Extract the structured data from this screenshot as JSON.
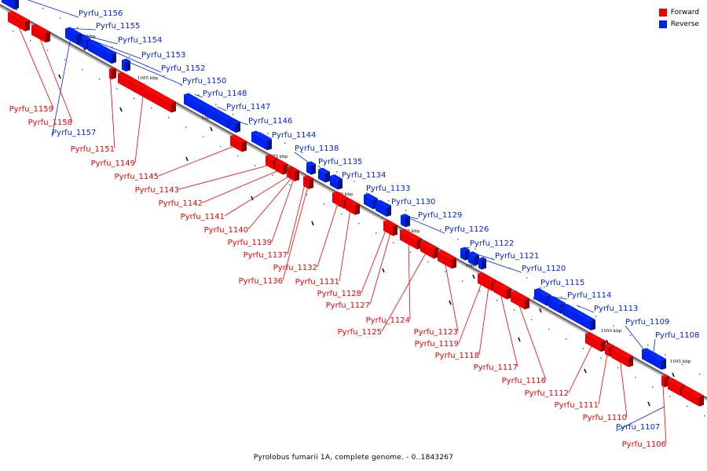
{
  "legend": {
    "forward_label": "Forward",
    "reverse_label": "Reverse",
    "forward_color": "#ee0000",
    "reverse_color": "#0022ee"
  },
  "caption": "Pyrolobus fumarii 1A, complete genome. - 0..1843267",
  "ruler_labels": [
    "1090 kbp",
    "1085 kbp",
    "1080 kbp",
    "1075 kbp",
    "1070 kbp",
    "1065 kbp",
    "1060 kbp",
    "1055 kbp",
    "1050 kbp",
    "1045 kbp"
  ],
  "reverse_genes": [
    "Pyrfu_1156",
    "Pyrfu_1155",
    "Pyrfu_1154",
    "Pyrfu_1153",
    "Pyrfu_1152",
    "Pyrfu_1150",
    "Pyrfu_1157",
    "Pyrfu_1148",
    "Pyrfu_1147",
    "Pyrfu_1146",
    "Pyrfu_1144",
    "Pyrfu_1138",
    "Pyrfu_1135",
    "Pyrfu_1134",
    "Pyrfu_1133",
    "Pyrfu_1130",
    "Pyrfu_1129",
    "Pyrfu_1126",
    "Pyrfu_1122",
    "Pyrfu_1121",
    "Pyrfu_1120",
    "Pyrfu_1115",
    "Pyrfu_1114",
    "Pyrfu_1113",
    "Pyrfu_1109",
    "Pyrfu_1108",
    "Pyrfu_1107"
  ],
  "forward_genes": [
    "Pyrfu_1159",
    "Pyrfu_1158",
    "Pyrfu_1151",
    "Pyrfu_1149",
    "Pyrfu_1145",
    "Pyrfu_1143",
    "Pyrfu_1142",
    "Pyrfu_1141",
    "Pyrfu_1140",
    "Pyrfu_1139",
    "Pyrfu_1137",
    "Pyrfu_1136",
    "Pyrfu_1132",
    "Pyrfu_1131",
    "Pyrfu_1128",
    "Pyrfu_1127",
    "Pyrfu_1124",
    "Pyrfu_1125",
    "Pyrfu_1123",
    "Pyrfu_1119",
    "Pyrfu_1118",
    "Pyrfu_1117",
    "Pyrfu_1116",
    "Pyrfu_1112",
    "Pyrfu_1111",
    "Pyrfu_1110",
    "Pyrfu_1106"
  ]
}
